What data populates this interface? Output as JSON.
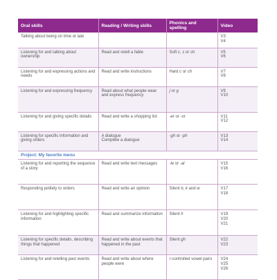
{
  "headers": [
    "Oral skills",
    "Reading / Writing skills",
    "Phonics and spelling",
    "Video"
  ],
  "project": "Project: My favorite menu",
  "rows": [
    {
      "oral": "Talking about being on time or late",
      "reading": "",
      "phonics": "",
      "video": "V3\nV4",
      "shade": false,
      "h": 22
    },
    {
      "oral": "Listening for and talking about ownership",
      "reading": "Read and retell a fable",
      "phonics": "Soft c, s or sh",
      "video": "V5\nV6",
      "shade": true,
      "h": 28
    },
    {
      "oral": "Listening for and expressing actions and needs",
      "reading": "Read and write instructions",
      "phonics": "Hard c or ch",
      "video": "V7\nV8",
      "shade": false,
      "h": 28
    },
    {
      "oral": "Listening for and expressing frequency",
      "reading": "Read about what people wear and express frequency",
      "phonics": "j or g",
      "video": "V9\nV10",
      "shade": true,
      "h": 37
    },
    {
      "oral": "Listening for and giving specific details",
      "reading": "Read and write a shopping list",
      "phonics": "-er or -or",
      "video": "V11\nV12",
      "shade": false,
      "h": 28
    },
    {
      "oral": "Listening for specific information and giving orders",
      "reading": "A dialogue\nComplete a dialogue",
      "phonics": "-gh or -ph",
      "video": "V13\nV14",
      "shade": true,
      "h": 28
    },
    {
      "oral": "Listening for and reporting the sequence of a story",
      "reading": "Read and write text messages",
      "phonics": "-le or -al",
      "video": "V15\nV16",
      "shade": false,
      "h": 36
    },
    {
      "oral": "Responding politely to orders",
      "reading": "Read and write an opinion",
      "phonics": "Silent b, k and w",
      "video": "V17\nV18",
      "shade": false,
      "h": 37
    },
    {
      "oral": "Listening for and highlighting specific information",
      "reading": "Read and summarize information",
      "phonics": "Silent h",
      "video": "V19\nV20\nV21",
      "shade": false,
      "h": 37
    },
    {
      "oral": "Listening for specific details, describing things that happened",
      "reading": "Read and write about events that happened in the past",
      "phonics": "Silent gh",
      "video": "V22\nV23",
      "shade": true,
      "h": 28
    },
    {
      "oral": "Listening for and retelling past events",
      "reading": "Read and write about where people were",
      "phonics": "r-controlled vowel pairs",
      "video": "V24\nV25\nV26",
      "shade": false,
      "h": 36
    }
  ]
}
